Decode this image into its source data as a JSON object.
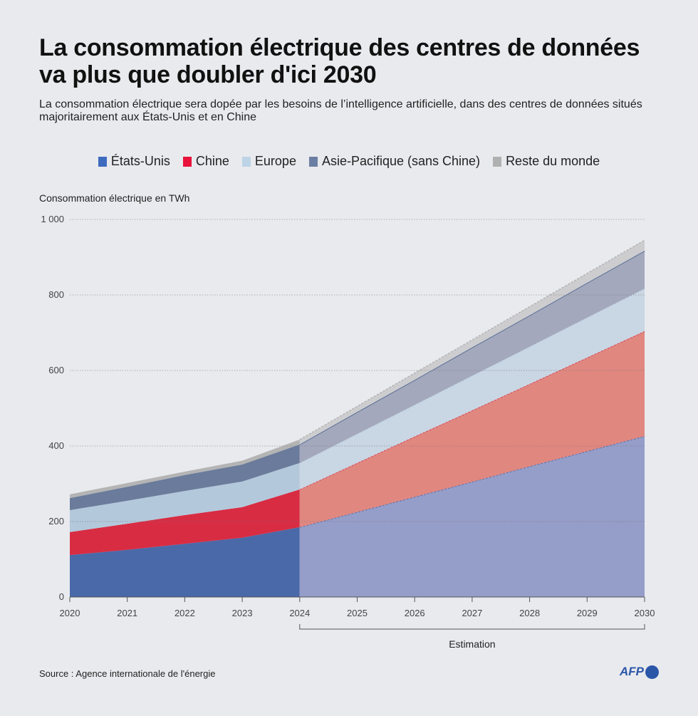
{
  "title": "La consommation électrique des centres de données va plus que doubler d'ici 2030",
  "subtitle": "La consommation électrique sera dopée par les besoins de l’intelligence artificielle, dans des centres de données situés majoritairement aux États-Unis et en Chine",
  "source": "Source : Agence internationale de l'énergie",
  "logo": "AFP",
  "chart_data": {
    "type": "area",
    "stacked": true,
    "ylabel": "Consommation électrique en TWh",
    "ylim": [
      0,
      1000
    ],
    "yticks": [
      0,
      200,
      400,
      600,
      800,
      1000
    ],
    "ytick_labels": [
      "0",
      "200",
      "400",
      "600",
      "800",
      "1 000"
    ],
    "x": [
      "2020",
      "2021",
      "2022",
      "2023",
      "2024",
      "2025",
      "2026",
      "2027",
      "2028",
      "2029",
      "2030"
    ],
    "grid": true,
    "legend_position": "top",
    "estimate_from": "2024",
    "estimate_label": "Estimation",
    "series": [
      {
        "name": "États-Unis",
        "color": "#3f6bbf",
        "fill": "#4a69a8",
        "estimate_fill": "#959dc9",
        "values": [
          111,
          125,
          141,
          157,
          185,
          225,
          265,
          305,
          346,
          386,
          426
        ]
      },
      {
        "name": "Chine",
        "color": "#e8123a",
        "fill": "#d82c43",
        "estimate_fill": "#e08780",
        "values": [
          61,
          69,
          76,
          81,
          100,
          130,
          160,
          189,
          218,
          248,
          278
        ]
      },
      {
        "name": "Europe",
        "color": "#bcd4e6",
        "fill": "#b3c8db",
        "estimate_fill": "#c9d6e3",
        "values": [
          58,
          61,
          64,
          68,
          70,
          77,
          84,
          92,
          99,
          106,
          113
        ]
      },
      {
        "name": "Asie-Pacifique (sans Chine)",
        "color": "#6b7fa3",
        "fill": "#6a7b9b",
        "estimate_fill": "#a3a8bc",
        "values": [
          32,
          37,
          42,
          45,
          49,
          58,
          66,
          75,
          83,
          92,
          100
        ]
      },
      {
        "name": "Reste du monde",
        "color": "#b0b0b0",
        "fill": "#b4b4b4",
        "estimate_fill": "#cdcdcf",
        "values": [
          10,
          10,
          9,
          10,
          13,
          15,
          18,
          20,
          23,
          25,
          28
        ]
      }
    ]
  }
}
